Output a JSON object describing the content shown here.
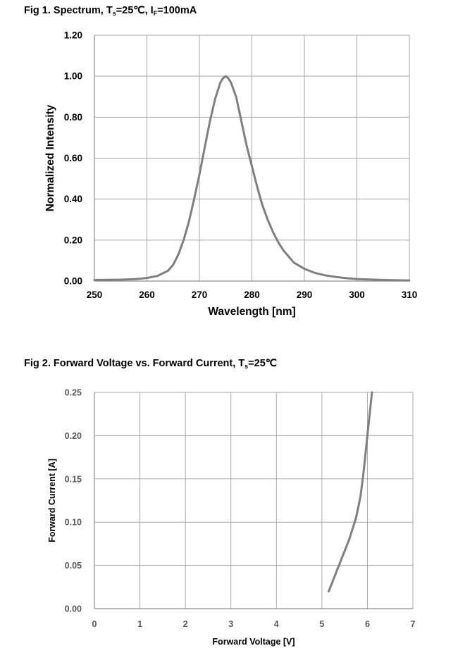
{
  "fig1": {
    "title_prefix": "Fig 1. Spectrum, T",
    "title_sub1": "s",
    "title_mid": "=25℃, I",
    "title_sub2": "F",
    "title_suffix": "=100mA"
  },
  "fig2": {
    "title_prefix": "Fig 2. Forward Voltage vs. Forward Current, T",
    "title_sub1": "s",
    "title_suffix": "=25℃"
  },
  "chart_data": [
    {
      "type": "line",
      "xlabel": "Wavelength [nm]",
      "ylabel": "Normalized Intensity",
      "xlim": [
        250,
        310
      ],
      "ylim": [
        0,
        1.2
      ],
      "x_ticks": [
        "250",
        "260",
        "270",
        "280",
        "290",
        "300",
        "310"
      ],
      "y_ticks": [
        "0.00",
        "0.20",
        "0.40",
        "0.60",
        "0.80",
        "1.00",
        "1.20"
      ],
      "grid": true,
      "color": "#7f7f7f",
      "series": [
        {
          "x": [
            250,
            255,
            258,
            260,
            262,
            264,
            265,
            266,
            267,
            268,
            269,
            270,
            271,
            272,
            273,
            274,
            274.5,
            275,
            275.5,
            276,
            277,
            278,
            279,
            280,
            281,
            282,
            283,
            284,
            285,
            286,
            287,
            288,
            289,
            290,
            292,
            294,
            296,
            298,
            300,
            305,
            310
          ],
          "y": [
            0.005,
            0.007,
            0.01,
            0.015,
            0.025,
            0.05,
            0.08,
            0.13,
            0.2,
            0.29,
            0.4,
            0.52,
            0.65,
            0.78,
            0.89,
            0.97,
            0.99,
            1.0,
            0.99,
            0.97,
            0.9,
            0.78,
            0.66,
            0.56,
            0.46,
            0.37,
            0.3,
            0.24,
            0.19,
            0.15,
            0.12,
            0.09,
            0.075,
            0.06,
            0.04,
            0.028,
            0.02,
            0.014,
            0.01,
            0.005,
            0.003
          ]
        }
      ]
    },
    {
      "type": "line",
      "xlabel": "Forward Voltage [V]",
      "ylabel": "Forward Current [A]",
      "xlim": [
        0,
        7
      ],
      "ylim": [
        0,
        0.25
      ],
      "x_ticks": [
        "0",
        "1",
        "2",
        "3",
        "4",
        "5",
        "6",
        "7"
      ],
      "y_ticks": [
        "0.00",
        "0.05",
        "0.10",
        "0.15",
        "0.20",
        "0.25"
      ],
      "grid": true,
      "color": "#7f7f7f",
      "series": [
        {
          "x": [
            5.15,
            5.3,
            5.45,
            5.6,
            5.75,
            5.85,
            5.92,
            6.0,
            6.1
          ],
          "y": [
            0.02,
            0.04,
            0.06,
            0.08,
            0.105,
            0.13,
            0.16,
            0.2,
            0.25
          ]
        }
      ]
    }
  ]
}
